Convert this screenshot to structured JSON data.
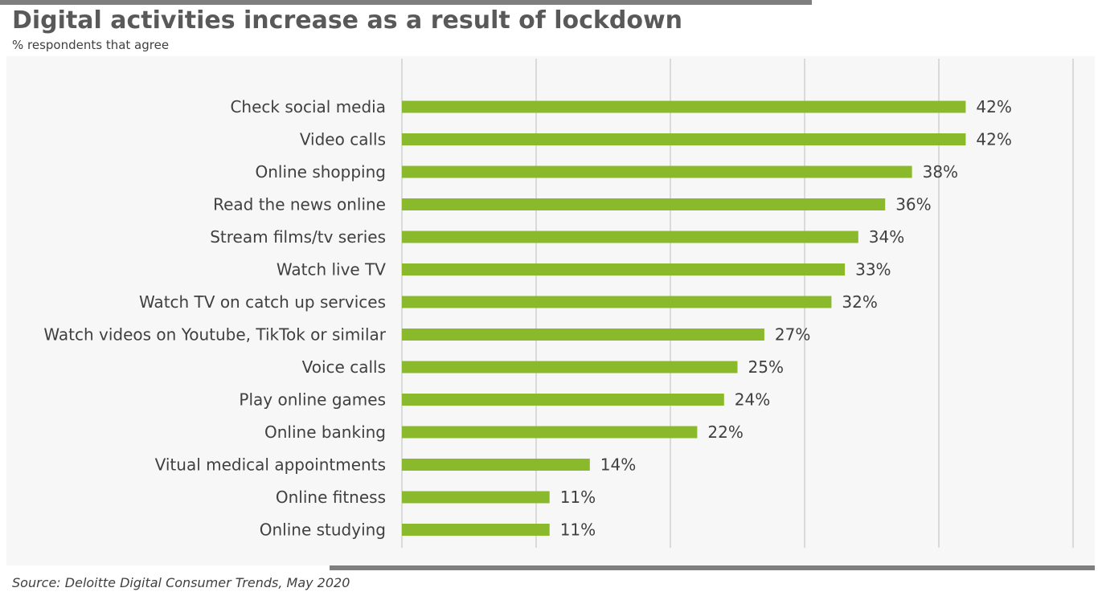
{
  "header": {
    "title": "Digital activities increase as a result of lockdown",
    "subtitle": "% respondents that agree"
  },
  "footer": {
    "source": "Source: Deloitte Digital Consumer Trends, May 2020"
  },
  "colors": {
    "bar": "#8aba2b",
    "rule": "#7f7f7f",
    "gridline": "#d0d0d0",
    "plot_background": "#f7f7f7"
  },
  "chart_data": {
    "type": "bar",
    "orientation": "horizontal",
    "title": "Digital activities increase as a result of lockdown",
    "subtitle": "% respondents that agree",
    "xlabel": "",
    "ylabel": "",
    "xlim": [
      0,
      50
    ],
    "grid": true,
    "legend": "none",
    "categories": [
      "Check social media",
      "Video calls",
      "Online shopping",
      "Read the news online",
      "Stream films/tv series",
      "Watch live TV",
      "Watch TV on catch up services",
      "Watch videos on Youtube, TikTok or similar",
      "Voice calls",
      "Play online games",
      "Online banking",
      "Vitual medical appointments",
      "Online fitness",
      "Online studying"
    ],
    "values": [
      42,
      42,
      38,
      36,
      34,
      33,
      32,
      27,
      25,
      24,
      22,
      14,
      11,
      11
    ],
    "value_labels": [
      "42%",
      "42%",
      "38%",
      "36%",
      "34%",
      "33%",
      "32%",
      "27%",
      "25%",
      "24%",
      "22%",
      "14%",
      "11%",
      "11%"
    ]
  }
}
